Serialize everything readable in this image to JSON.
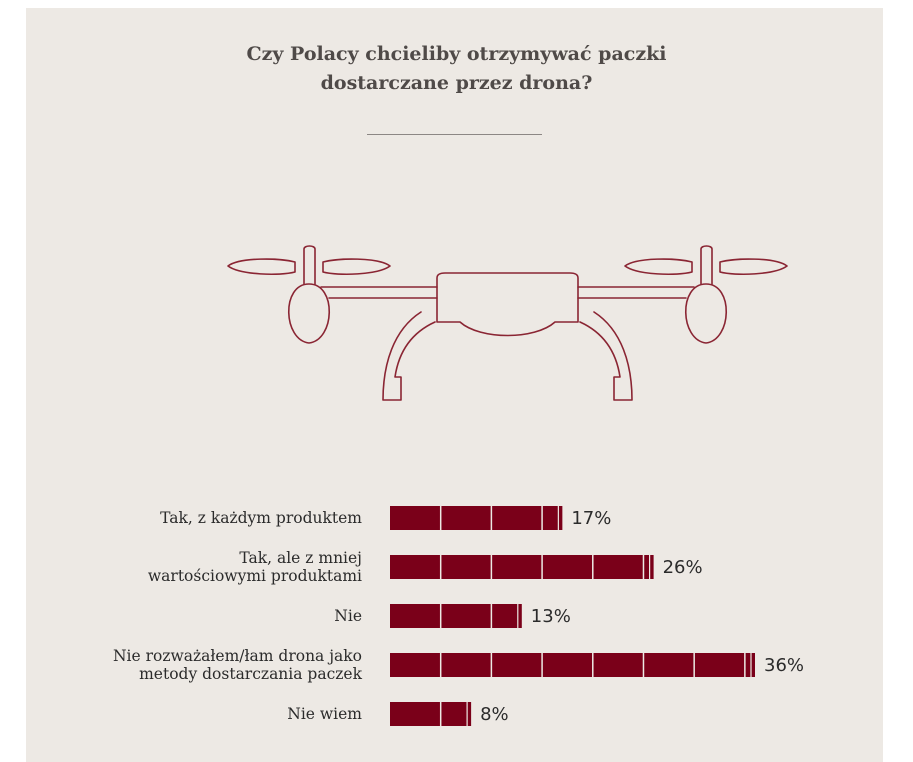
{
  "title": {
    "line1": "Czy Polacy chcieliby otrzymywać paczki",
    "line2": "dostarczane przez drona?"
  },
  "colors": {
    "background": "#ede9e4",
    "bar": "#7a0019",
    "drone_stroke": "#8a2533",
    "title": "#4f4a48"
  },
  "icons": {
    "illustration": "drone-icon"
  },
  "chart_data": {
    "type": "bar",
    "orientation": "horizontal",
    "categories": [
      [
        "Tak, z każdym produktem"
      ],
      [
        "Tak, ale z mniej",
        "wartościowymi produktami"
      ],
      [
        "Nie"
      ],
      [
        "Nie rozważałem/łam drona jako",
        "metody dostarczania paczek"
      ],
      [
        "Nie wiem"
      ]
    ],
    "values": [
      17,
      26,
      13,
      36,
      8
    ],
    "value_labels": [
      "17%",
      "26%",
      "13%",
      "36%",
      "8%"
    ],
    "unit": "%",
    "xlim": [
      0,
      36
    ],
    "grid": false,
    "legend": "none",
    "segment_size": 5
  }
}
